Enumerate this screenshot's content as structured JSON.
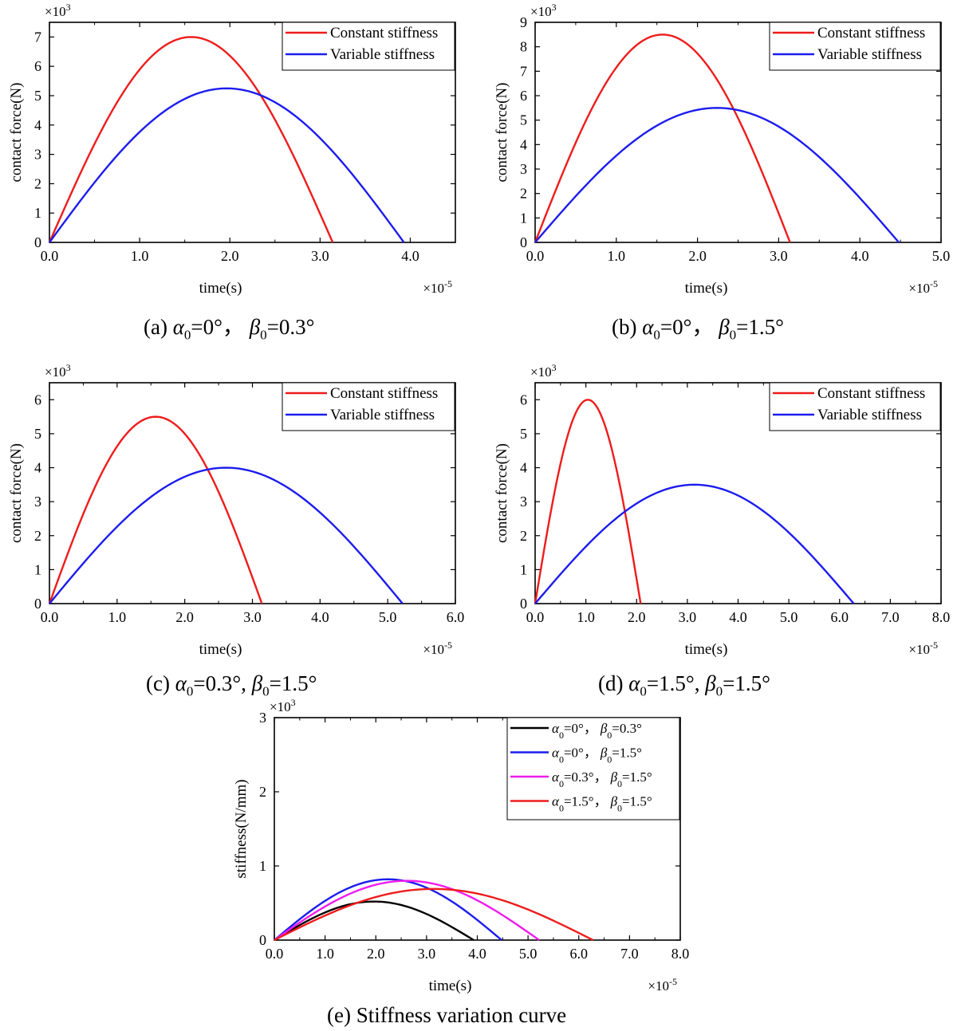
{
  "chart_data": [
    {
      "id": "a",
      "type": "line",
      "xlabel": "time(s)",
      "ylabel": "contact force(N)",
      "x_multiplier": "×10",
      "x_multiplier_exp": "-5",
      "y_multiplier": "×10",
      "y_multiplier_exp": "3",
      "xlim": [
        0,
        4.5
      ],
      "ylim": [
        0,
        7.5
      ],
      "xticks": [
        "0.0",
        "1.0",
        "2.0",
        "3.0",
        "4.0"
      ],
      "yticks": [
        "0",
        "1",
        "2",
        "3",
        "4",
        "5",
        "6",
        "7"
      ],
      "legend_position": "top-right",
      "series": [
        {
          "name": "Constant stiffness",
          "color": "#ee1c1c",
          "shape": "parabola",
          "t_end": 3.14,
          "peak": 7.0
        },
        {
          "name": "Variable stiffness",
          "color": "#1c1cee",
          "shape": "parabola",
          "t_end": 3.93,
          "peak": 5.25
        }
      ],
      "caption": {
        "prefix": "(a) ",
        "alpha_val": "=0°，",
        "beta_val": "=0.3°"
      }
    },
    {
      "id": "b",
      "type": "line",
      "xlabel": "time(s)",
      "ylabel": "contact force(N)",
      "x_multiplier": "×10",
      "x_multiplier_exp": "-5",
      "y_multiplier": "×10",
      "y_multiplier_exp": "3",
      "xlim": [
        0,
        5.0
      ],
      "ylim": [
        0,
        9
      ],
      "xticks": [
        "0.0",
        "1.0",
        "2.0",
        "3.0",
        "4.0",
        "5.0"
      ],
      "yticks": [
        "0",
        "1",
        "2",
        "3",
        "4",
        "5",
        "6",
        "7",
        "8",
        "9"
      ],
      "legend_position": "top-right",
      "series": [
        {
          "name": "Constant stiffness",
          "color": "#ee1c1c",
          "shape": "parabola",
          "t_end": 3.14,
          "peak": 8.5
        },
        {
          "name": "Variable stiffness",
          "color": "#1c1cee",
          "shape": "parabola",
          "t_end": 4.48,
          "peak": 5.5
        }
      ],
      "caption": {
        "prefix": "(b) ",
        "alpha_val": "=0°，",
        "beta_val": "=1.5°"
      }
    },
    {
      "id": "c",
      "type": "line",
      "xlabel": "time(s)",
      "ylabel": "contact force(N)",
      "x_multiplier": "×10",
      "x_multiplier_exp": "-5",
      "y_multiplier": "×10",
      "y_multiplier_exp": "3",
      "xlim": [
        0,
        6.0
      ],
      "ylim": [
        0,
        6.5
      ],
      "xticks": [
        "0.0",
        "1.0",
        "2.0",
        "3.0",
        "4.0",
        "5.0",
        "6.0"
      ],
      "yticks": [
        "0",
        "1",
        "2",
        "3",
        "4",
        "5",
        "6"
      ],
      "legend_position": "top-right",
      "series": [
        {
          "name": "Constant stiffness",
          "color": "#ee1c1c",
          "shape": "parabola",
          "t_end": 3.14,
          "peak": 5.5
        },
        {
          "name": "Variable stiffness",
          "color": "#1c1cee",
          "shape": "parabola",
          "t_end": 5.22,
          "peak": 4.0
        }
      ],
      "caption": {
        "prefix": "(c) ",
        "alpha_val": "=0.3°, ",
        "beta_val": "=1.5°"
      }
    },
    {
      "id": "d",
      "type": "line",
      "xlabel": "time(s)",
      "ylabel": "contact force(N)",
      "x_multiplier": "×10",
      "x_multiplier_exp": "-5",
      "y_multiplier": "×10",
      "y_multiplier_exp": "3",
      "xlim": [
        0,
        8.0
      ],
      "ylim": [
        0,
        6.5
      ],
      "xticks": [
        "0.0",
        "1.0",
        "2.0",
        "3.0",
        "4.0",
        "5.0",
        "6.0",
        "7.0",
        "8.0"
      ],
      "yticks": [
        "0",
        "1",
        "2",
        "3",
        "4",
        "5",
        "6"
      ],
      "legend_position": "top-right",
      "series": [
        {
          "name": "Constant stiffness",
          "color": "#ee1c1c",
          "shape": "parabola",
          "t_end": 2.08,
          "peak": 6.0
        },
        {
          "name": "Variable stiffness",
          "color": "#1c1cee",
          "shape": "parabola",
          "t_end": 6.28,
          "peak": 3.5
        }
      ],
      "caption": {
        "prefix": "(d) ",
        "alpha_val": "=1.5°, ",
        "beta_val": "=1.5°"
      }
    },
    {
      "id": "e",
      "type": "line",
      "xlabel": "time(s)",
      "ylabel": "stiffness(N/mm)",
      "x_multiplier": "×10",
      "x_multiplier_exp": "-5",
      "y_multiplier": "×10",
      "y_multiplier_exp": "3",
      "xlim": [
        0,
        8.0
      ],
      "ylim": [
        0,
        3
      ],
      "xticks": [
        "0.0",
        "1.0",
        "2.0",
        "3.0",
        "4.0",
        "5.0",
        "6.0",
        "7.0",
        "8.0"
      ],
      "yticks": [
        "0",
        "1",
        "2",
        "3"
      ],
      "legend_position": "top-right",
      "series": [
        {
          "name": "α0=0°，β0=0.3°",
          "alpha": "=0°，",
          "beta": "=0.3°",
          "color": "#000000",
          "shape": "parabola",
          "t_end": 3.93,
          "peak": 0.52
        },
        {
          "name": "α0=0°，β0=1.5°",
          "alpha": "=0°，",
          "beta": "=1.5°",
          "color": "#1c1cee",
          "shape": "parabola",
          "t_end": 4.48,
          "peak": 0.82
        },
        {
          "name": "α0=0.3°，β0=1.5°",
          "alpha": "=0.3°，",
          "beta": "=1.5°",
          "color": "#ee1cee",
          "shape": "parabola",
          "t_end": 5.22,
          "peak": 0.8
        },
        {
          "name": "α0=1.5°，β0=1.5°",
          "alpha": "=1.5°，",
          "beta": "=1.5°",
          "color": "#ee1c1c",
          "shape": "parabola",
          "t_end": 6.28,
          "peak": 0.69
        }
      ],
      "caption": {
        "prefix": "(e) ",
        "text": "Stiffness variation curve"
      }
    }
  ],
  "symbols": {
    "alpha": "α",
    "beta": "β",
    "sub": "0"
  }
}
